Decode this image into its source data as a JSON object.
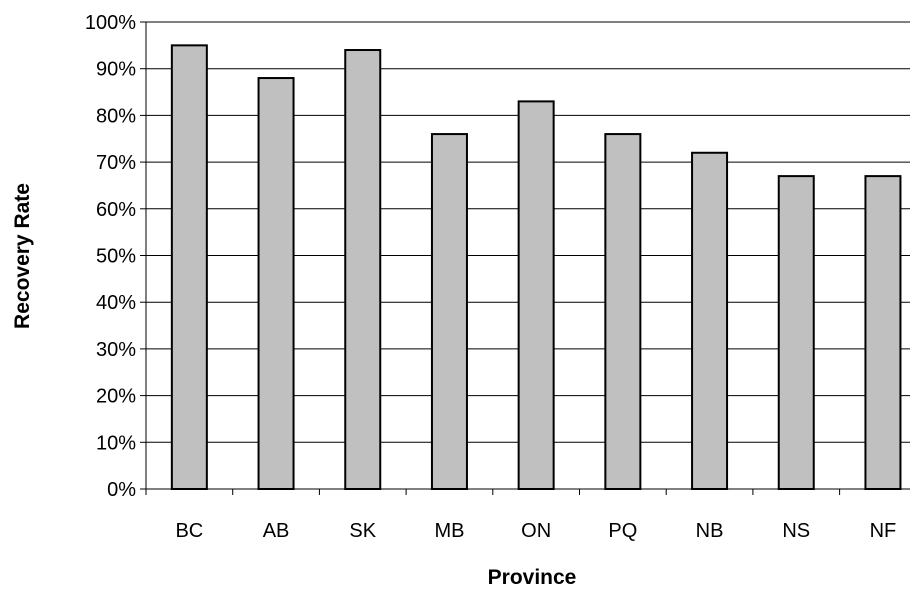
{
  "chart_data": {
    "type": "bar",
    "title": "",
    "xlabel": "Province",
    "ylabel": "Recovery Rate",
    "categories": [
      "BC",
      "AB",
      "SK",
      "MB",
      "ON",
      "PQ",
      "NB",
      "NS",
      "NF"
    ],
    "values": [
      95,
      88,
      94,
      76,
      83,
      76,
      72,
      67,
      67
    ],
    "value_format": "percent",
    "ylim": [
      0,
      100
    ],
    "yticks": [
      "0%",
      "10%",
      "20%",
      "30%",
      "40%",
      "50%",
      "60%",
      "70%",
      "80%",
      "90%",
      "100%"
    ],
    "grid": "horizontal",
    "legend": "none",
    "colors": {
      "bar_fill": "#c0c0c0",
      "bar_stroke": "#000000",
      "grid": "#000000",
      "background": "#ffffff"
    }
  }
}
